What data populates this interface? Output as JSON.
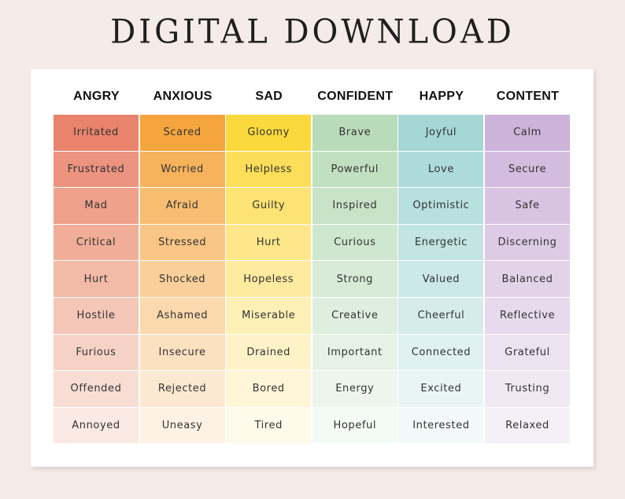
{
  "title": "DIGITAL DOWNLOAD",
  "columns": [
    {
      "header": "ANGRY",
      "words": [
        "Irritated",
        "Frustrated",
        "Mad",
        "Critical",
        "Hurt",
        "Hostile",
        "Furious",
        "Offended",
        "Annoyed"
      ],
      "colors": [
        "#e9836c",
        "#ec9480",
        "#efa18b",
        "#f0ad98",
        "#f3baa8",
        "#f4c6b7",
        "#f7d2c6",
        "#f8ddd4",
        "#fbe9e3"
      ]
    },
    {
      "header": "ANXIOUS",
      "words": [
        "Scared",
        "Worried",
        "Afraid",
        "Stressed",
        "Shocked",
        "Ashamed",
        "Insecure",
        "Rejected",
        "Uneasy"
      ],
      "colors": [
        "#f5a53e",
        "#f7b25c",
        "#f8bd70",
        "#f9c685",
        "#facf99",
        "#fbd8ad",
        "#fce1c0",
        "#fde9d2",
        "#fef2e5"
      ]
    },
    {
      "header": "SAD",
      "words": [
        "Gloomy",
        "Helpless",
        "Guilty",
        "Hurt",
        "Hopeless",
        "Miserable",
        "Drained",
        "Bored",
        "Tired"
      ],
      "colors": [
        "#fbd93c",
        "#fcde5a",
        "#fde373",
        "#fde78a",
        "#feeba0",
        "#feefb5",
        "#fef3c8",
        "#fff6d8",
        "#fffae9"
      ]
    },
    {
      "header": "CONFIDENT",
      "words": [
        "Brave",
        "Powerful",
        "Inspired",
        "Curious",
        "Strong",
        "Creative",
        "Important",
        "Energy",
        "Hopeful"
      ],
      "colors": [
        "#b9dbb9",
        "#c1dfc1",
        "#c8e3c8",
        "#d0e7cf",
        "#d7ebd7",
        "#dfefdf",
        "#e6f2e6",
        "#edf6ed",
        "#f4faf4"
      ]
    },
    {
      "header": "HAPPY",
      "words": [
        "Joyful",
        "Love",
        "Optimistic",
        "Energetic",
        "Valued",
        "Cheerful",
        "Connected",
        "Excited",
        "Interested"
      ],
      "colors": [
        "#a4d7d6",
        "#addbdb",
        "#b7e0df",
        "#c2e4e3",
        "#cce8e8",
        "#d6ecec",
        "#e0f1f1",
        "#e9f5f5",
        "#f2f9f9"
      ]
    },
    {
      "header": "CONTENT",
      "words": [
        "Calm",
        "Secure",
        "Safe",
        "Discerning",
        "Balanced",
        "Reflective",
        "Grateful",
        "Trusting",
        "Relaxed"
      ],
      "colors": [
        "#cdb3da",
        "#d3bcde",
        "#d8c4e2",
        "#ddcbe5",
        "#e2d3e9",
        "#e7daed",
        "#ece2f0",
        "#f0e8f3",
        "#f5eff7"
      ]
    }
  ]
}
